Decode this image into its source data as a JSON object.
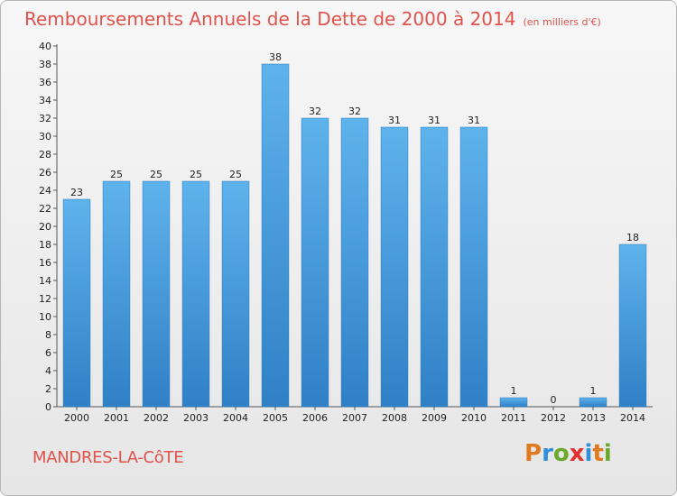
{
  "title": "Remboursements Annuels de la Dette de 2000 à 2014",
  "subtitle": "(en milliers d'€)",
  "town": "MANDRES-LA-CôTE",
  "logo": {
    "letters": [
      "P",
      "r",
      "o",
      "x",
      "i",
      "t",
      "i"
    ],
    "colors": [
      "#e07a1f",
      "#2f8fd8",
      "#6aaa2a",
      "#e03030",
      "#2f8fd8",
      "#e07a1f",
      "#6aaa2a"
    ]
  },
  "chart_data": {
    "type": "bar",
    "categories": [
      "2000",
      "2001",
      "2002",
      "2003",
      "2004",
      "2005",
      "2006",
      "2007",
      "2008",
      "2009",
      "2010",
      "2011",
      "2012",
      "2013",
      "2014"
    ],
    "values": [
      23,
      25,
      25,
      25,
      25,
      38,
      32,
      32,
      31,
      31,
      31,
      1,
      0,
      1,
      18
    ],
    "ylim": [
      0,
      40
    ],
    "yticks": [
      0,
      2,
      4,
      6,
      8,
      10,
      12,
      14,
      16,
      18,
      20,
      22,
      24,
      26,
      28,
      30,
      32,
      34,
      36,
      38,
      40
    ],
    "bar_color": "#4a9fe0",
    "grid": false
  }
}
